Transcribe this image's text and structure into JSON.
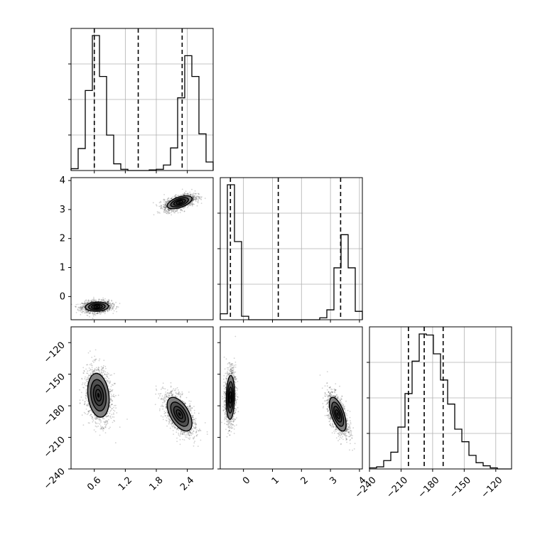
{
  "chart_data": {
    "type": "corner",
    "colors": {
      "line": "#000000",
      "grid": "#b0b0b0",
      "density": "#000000"
    },
    "grid": true,
    "parameters": [
      {
        "index": 0,
        "ticks": [
          0.6,
          1.2,
          1.8,
          2.4
        ],
        "tick_labels": [
          "0.6",
          "1.2",
          "1.8",
          "2.4"
        ],
        "range": [
          0.15,
          2.9
        ]
      },
      {
        "index": 1,
        "ticks": [
          0,
          1,
          2,
          3,
          4
        ],
        "tick_labels": [
          "0",
          "1",
          "2",
          "3",
          "4"
        ],
        "range": [
          -0.8,
          4.1
        ]
      },
      {
        "index": 2,
        "ticks": [
          -240,
          -210,
          -180,
          -150,
          -120
        ],
        "tick_labels": [
          "−240",
          "−210",
          "−180",
          "−150",
          "−120"
        ],
        "range": [
          -240,
          -105
        ]
      }
    ],
    "histograms": [
      {
        "param": 0,
        "bin_edges": [
          0.15,
          0.2875,
          0.425,
          0.5625,
          0.7,
          0.8375,
          0.975,
          1.1125,
          1.25,
          1.3875,
          1.525,
          1.6625,
          1.8,
          1.9375,
          2.075,
          2.2125,
          2.35,
          2.4875,
          2.625,
          2.7625,
          2.9
        ],
        "counts": [
          3,
          36,
          131,
          221,
          154,
          58,
          11,
          2,
          0,
          0,
          0,
          1,
          2,
          9,
          37,
          119,
          188,
          154,
          60,
          14,
          0
        ],
        "quantile_lines": [
          0.6,
          1.45,
          2.3
        ]
      },
      {
        "param": 1,
        "bin_edges": [
          -0.8,
          -0.555,
          -0.31,
          -0.065,
          0.18,
          0.425,
          0.67,
          0.915,
          1.16,
          1.405,
          1.65,
          1.895,
          2.14,
          2.385,
          2.63,
          2.875,
          3.12,
          3.365,
          3.61,
          3.855,
          4.1
        ],
        "counts": [
          12,
          273,
          158,
          7,
          0,
          0,
          0,
          0,
          0,
          0,
          0,
          0,
          0,
          0,
          4,
          20,
          105,
          172,
          105,
          17
        ],
        "quantile_lines": [
          -0.45,
          1.2,
          3.35
        ]
      },
      {
        "param": 2,
        "bin_edges": [
          -240,
          -233.25,
          -226.5,
          -219.75,
          -213,
          -206.25,
          -199.5,
          -192.75,
          -186,
          -179.25,
          -172.5,
          -165.75,
          -159,
          -152.25,
          -145.5,
          -138.75,
          -132,
          -125.25,
          -118.5,
          -111.75,
          -105
        ],
        "counts": [
          1,
          2,
          8,
          16,
          40,
          72,
          103,
          129,
          128,
          110,
          85,
          62,
          38,
          26,
          13,
          6,
          3,
          1,
          0,
          0
        ],
        "quantile_lines": [
          -203,
          -188,
          -170
        ]
      }
    ],
    "scatter_panels": [
      {
        "x_param": 0,
        "y_param": 1,
        "clusters": [
          {
            "center": [
              0.65,
              -0.35
            ],
            "sd": [
              0.14,
              0.1
            ],
            "rho": 0.1,
            "contour_sd": [
              0.42,
              0.75,
              1.15,
              1.6
            ]
          },
          {
            "center": [
              2.25,
              3.25
            ],
            "sd": [
              0.15,
              0.14
            ],
            "rho": 0.55,
            "contour_sd": [
              0.42,
              0.75,
              1.15,
              1.6
            ]
          }
        ]
      },
      {
        "x_param": 0,
        "y_param": 2,
        "clusters": [
          {
            "center": [
              0.68,
              -170
            ],
            "sd": [
              0.13,
              13
            ],
            "rho": -0.2,
            "contour_sd": [
              0.42,
              0.75,
              1.15,
              1.6
            ]
          },
          {
            "center": [
              2.25,
              -188
            ],
            "sd": [
              0.15,
              10
            ],
            "rho": -0.55,
            "contour_sd": [
              0.42,
              0.75,
              1.15,
              1.6
            ]
          }
        ]
      },
      {
        "x_param": 1,
        "y_param": 2,
        "clusters": [
          {
            "center": [
              -0.45,
              -172
            ],
            "sd": [
              0.09,
              13
            ],
            "rho": 0.1,
            "contour_sd": [
              0.42,
              0.75,
              1.15,
              1.6
            ]
          },
          {
            "center": [
              3.25,
              -188
            ],
            "sd": [
              0.18,
              10
            ],
            "rho": -0.6,
            "contour_sd": [
              0.42,
              0.75,
              1.15,
              1.6
            ]
          }
        ]
      }
    ]
  }
}
